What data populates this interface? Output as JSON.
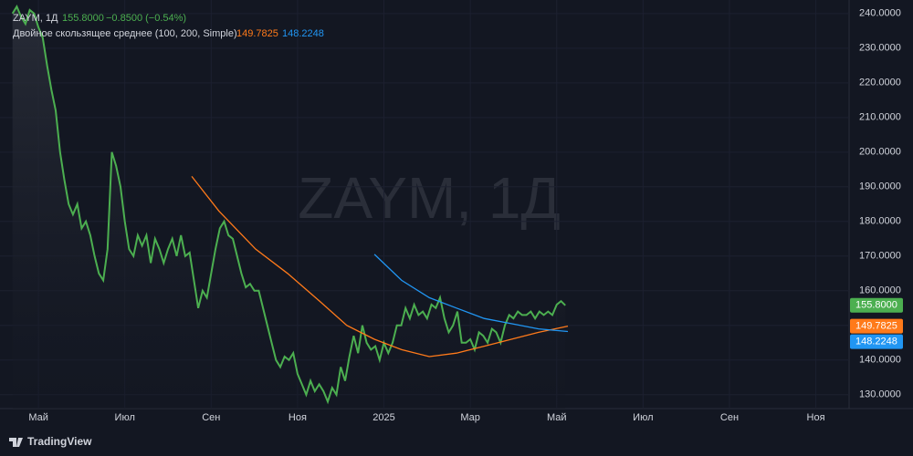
{
  "chart_data": {
    "type": "line",
    "symbol": "ZAYM, 1Д",
    "change": "−0.8500 (−0.54%)",
    "indicator": "Двойное скользящее среднее (100, 200, Simple)",
    "brand": "TradingView",
    "grid": true,
    "xlim": [
      3.11,
      22.77
    ],
    "ylim": [
      126,
      243.9
    ],
    "xticks": [
      {
        "value": 4,
        "label": "Май"
      },
      {
        "value": 6,
        "label": "Июл"
      },
      {
        "value": 8,
        "label": "Сен"
      },
      {
        "value": 10,
        "label": "Ноя"
      },
      {
        "value": 12,
        "label": "2025"
      },
      {
        "value": 14,
        "label": "Мар"
      },
      {
        "value": 16,
        "label": "Май"
      },
      {
        "value": 18,
        "label": "Июл"
      },
      {
        "value": 20,
        "label": "Сен"
      },
      {
        "value": 22,
        "label": "Ноя"
      }
    ],
    "yticks": [
      {
        "value": 130,
        "label": "130.0000"
      },
      {
        "value": 140,
        "label": "140.0000"
      },
      {
        "value": 150,
        "label": "150.0000"
      },
      {
        "value": 160,
        "label": "160.0000"
      },
      {
        "value": 170,
        "label": "170.0000"
      },
      {
        "value": 180,
        "label": "180.0000"
      },
      {
        "value": 190,
        "label": "190.0000"
      },
      {
        "value": 200,
        "label": "200.0000"
      },
      {
        "value": 210,
        "label": "210.0000"
      },
      {
        "value": 220,
        "label": "220.0000"
      },
      {
        "value": 230,
        "label": "230.0000"
      },
      {
        "value": 240,
        "label": "240.0000"
      }
    ],
    "series": [
      {
        "name": "ZAYM, 1Д",
        "color": "#4caf50",
        "last_label": "155.8000",
        "x": [
          3.4,
          3.5,
          3.6,
          3.7,
          3.8,
          3.9,
          4.0,
          4.1,
          4.2,
          4.3,
          4.4,
          4.5,
          4.6,
          4.7,
          4.8,
          4.9,
          5.0,
          5.1,
          5.2,
          5.3,
          5.4,
          5.5,
          5.6,
          5.7,
          5.8,
          5.9,
          6.0,
          6.1,
          6.2,
          6.3,
          6.4,
          6.5,
          6.6,
          6.7,
          6.8,
          6.9,
          7.0,
          7.1,
          7.2,
          7.3,
          7.4,
          7.5,
          7.6,
          7.7,
          7.8,
          7.9,
          8.0,
          8.1,
          8.2,
          8.3,
          8.4,
          8.5,
          8.6,
          8.7,
          8.8,
          8.9,
          9.0,
          9.1,
          9.2,
          9.3,
          9.4,
          9.5,
          9.6,
          9.7,
          9.8,
          9.9,
          10.0,
          10.1,
          10.2,
          10.3,
          10.4,
          10.5,
          10.6,
          10.7,
          10.8,
          10.9,
          11.0,
          11.1,
          11.2,
          11.3,
          11.4,
          11.5,
          11.6,
          11.7,
          11.8,
          11.9,
          12.0,
          12.1,
          12.2,
          12.3,
          12.4,
          12.5,
          12.6,
          12.7,
          12.8,
          12.9,
          13.0,
          13.1,
          13.2,
          13.3,
          13.4,
          13.5,
          13.6,
          13.7,
          13.8,
          13.9,
          14.0,
          14.1,
          14.2,
          14.3,
          14.4,
          14.5,
          14.6,
          14.7,
          14.8,
          14.9,
          15.0,
          15.1,
          15.2,
          15.3,
          15.4,
          15.5,
          15.6,
          15.7,
          15.8,
          15.9,
          16.0,
          16.1,
          16.2
        ],
        "values": [
          240,
          242,
          239,
          237,
          241,
          240,
          236,
          233,
          225,
          218,
          212,
          200,
          192,
          185,
          182,
          185,
          178,
          180,
          176,
          170,
          165,
          163,
          172,
          200,
          196,
          190,
          180,
          172,
          170,
          176,
          173,
          176,
          168,
          175,
          172,
          168,
          172,
          175,
          170,
          176,
          170,
          171,
          163,
          155,
          160,
          158,
          165,
          172,
          178,
          180,
          176,
          175,
          170,
          165,
          161,
          162,
          160,
          160,
          155,
          150,
          145,
          140,
          138,
          141,
          140,
          142,
          136,
          133,
          130,
          134,
          131,
          133,
          131,
          128,
          132,
          130,
          138,
          134,
          141,
          147,
          142,
          150,
          145,
          143,
          144,
          140,
          145,
          142,
          145,
          150,
          150,
          155,
          152,
          156,
          153,
          154,
          152,
          156,
          155,
          158,
          152,
          148,
          150,
          154,
          145,
          145,
          146,
          143,
          148,
          147,
          145,
          149,
          148,
          145,
          150,
          153,
          152,
          154,
          153,
          153,
          154,
          152,
          154,
          153,
          154,
          153,
          156,
          157,
          155.8
        ]
      },
      {
        "color": "#ff7a1a",
        "last_label": "149.7825",
        "x": [
          7.55,
          8.18,
          9.03,
          9.77,
          10.51,
          11.14,
          11.78,
          12.41,
          13.05,
          13.68,
          14.32,
          14.95,
          15.58,
          16.26
        ],
        "values": [
          193,
          183,
          172,
          165,
          157,
          150,
          146,
          143,
          141,
          142,
          144,
          146,
          148,
          149.7825
        ]
      },
      {
        "color": "#2196f3",
        "last_label": "148.2248",
        "x": [
          11.78,
          12.41,
          13.05,
          13.68,
          14.32,
          14.95,
          15.58,
          16.26
        ],
        "values": [
          170.5,
          163,
          158,
          155,
          152,
          150.5,
          149,
          148.2248
        ]
      }
    ]
  }
}
